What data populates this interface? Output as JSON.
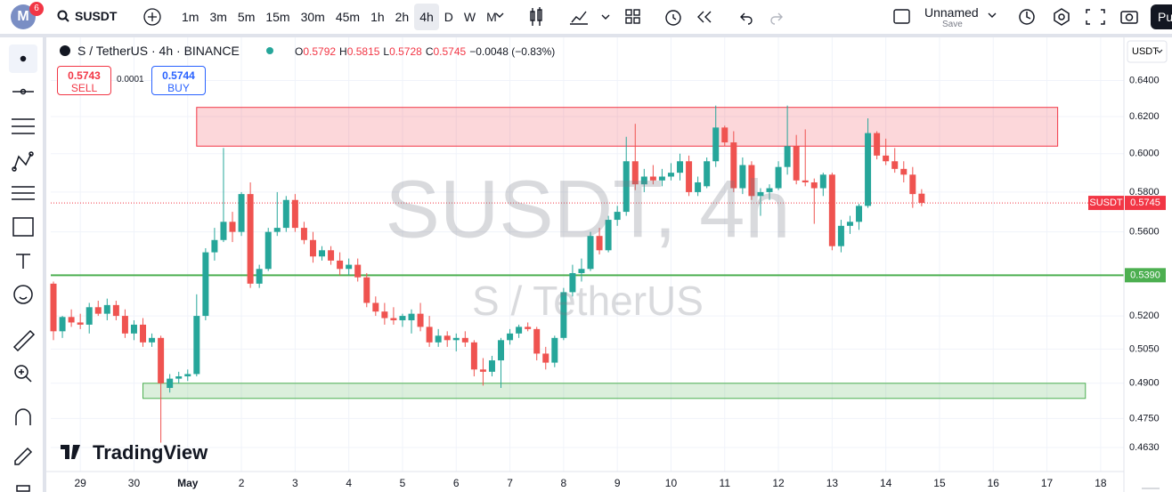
{
  "toolbar": {
    "badge": "6",
    "avatar": "M",
    "symbol": "SUSDT",
    "intervals": [
      "1m",
      "3m",
      "5m",
      "15m",
      "30m",
      "45m",
      "1h",
      "2h",
      "4h",
      "D",
      "W",
      "M"
    ],
    "active_interval": "4h",
    "layout_name": "Unnamed",
    "save": "Save",
    "publish": "Pu"
  },
  "legend": {
    "title": "S / TetherUS · 4h · BINANCE",
    "ohlc": [
      {
        "label": "O",
        "value": "0.5792"
      },
      {
        "label": "H",
        "value": "0.5815"
      },
      {
        "label": "L",
        "value": "0.5728"
      },
      {
        "label": "C",
        "value": "0.5745"
      }
    ],
    "change": "−0.0048 (−0.83%)"
  },
  "trade": {
    "sell_price": "0.5743",
    "sell": "SELL",
    "spread": "0.0001",
    "buy_price": "0.5744",
    "buy": "BUY"
  },
  "watermark": {
    "main": "SUSDT, 4h",
    "sub": "S / TetherUS",
    "logo": "TradingView"
  },
  "chart_data": {
    "type": "candlestick",
    "currency": "USDT",
    "log_scale": true,
    "grid": true,
    "up_color": "#26a69a",
    "down_color": "#ef5350",
    "open": [
      0.535,
      0.513,
      0.5195,
      0.517,
      0.516,
      0.524,
      0.521,
      0.525,
      0.52,
      0.512,
      0.516,
      0.508,
      0.51,
      0.488,
      0.492,
      0.493,
      0.494,
      0.52,
      0.55,
      0.556,
      0.565,
      0.56,
      0.579,
      0.535,
      0.542,
      0.56,
      0.562,
      0.576,
      0.562,
      0.556,
      0.548,
      0.551,
      0.546,
      0.542,
      0.544,
      0.538,
      0.526,
      0.522,
      0.519,
      0.518,
      0.518,
      0.521,
      0.515,
      0.508,
      0.511,
      0.509,
      0.51,
      0.508,
      0.496,
      0.495,
      0.5,
      0.509,
      0.512,
      0.515,
      0.514,
      0.503,
      0.499,
      0.51,
      0.531,
      0.54,
      0.542,
      0.558,
      0.551,
      0.566,
      0.57,
      0.596,
      0.584,
      0.588,
      0.586,
      0.588,
      0.59,
      0.596,
      0.58,
      0.583,
      0.596,
      0.614,
      0.606,
      0.582,
      0.594,
      0.578,
      0.58,
      0.582,
      0.593,
      0.604,
      0.586,
      0.585,
      0.582,
      0.589,
      0.553,
      0.563,
      0.565,
      0.573,
      0.611,
      0.599,
      0.596,
      0.592,
      0.589,
      0.5792
    ],
    "high": [
      0.536,
      0.52,
      0.523,
      0.521,
      0.526,
      0.527,
      0.528,
      0.527,
      0.523,
      0.518,
      0.519,
      0.512,
      0.511,
      0.494,
      0.495,
      0.496,
      0.53,
      0.552,
      0.562,
      0.603,
      0.57,
      0.58,
      0.585,
      0.544,
      0.562,
      0.58,
      0.578,
      0.579,
      0.565,
      0.56,
      0.553,
      0.553,
      0.55,
      0.547,
      0.547,
      0.54,
      0.529,
      0.526,
      0.524,
      0.521,
      0.523,
      0.526,
      0.52,
      0.514,
      0.513,
      0.512,
      0.513,
      0.509,
      0.501,
      0.502,
      0.51,
      0.514,
      0.516,
      0.517,
      0.515,
      0.506,
      0.511,
      0.533,
      0.544,
      0.547,
      0.56,
      0.562,
      0.568,
      0.573,
      0.609,
      0.616,
      0.592,
      0.594,
      0.592,
      0.595,
      0.6,
      0.599,
      0.588,
      0.598,
      0.626,
      0.615,
      0.612,
      0.598,
      0.596,
      0.582,
      0.584,
      0.596,
      0.626,
      0.61,
      0.613,
      0.587,
      0.59,
      0.59,
      0.566,
      0.568,
      0.574,
      0.619,
      0.612,
      0.608,
      0.603,
      0.596,
      0.593,
      0.5815
    ],
    "low": [
      0.509,
      0.51,
      0.515,
      0.514,
      0.512,
      0.52,
      0.518,
      0.518,
      0.51,
      0.509,
      0.506,
      0.506,
      0.465,
      0.486,
      0.49,
      0.491,
      0.493,
      0.518,
      0.546,
      0.555,
      0.555,
      0.558,
      0.533,
      0.533,
      0.541,
      0.558,
      0.56,
      0.56,
      0.554,
      0.545,
      0.546,
      0.544,
      0.539,
      0.539,
      0.536,
      0.524,
      0.52,
      0.516,
      0.516,
      0.515,
      0.512,
      0.513,
      0.506,
      0.506,
      0.506,
      0.504,
      0.506,
      0.493,
      0.489,
      0.493,
      0.488,
      0.507,
      0.51,
      0.513,
      0.5,
      0.496,
      0.497,
      0.509,
      0.529,
      0.536,
      0.541,
      0.549,
      0.55,
      0.563,
      0.568,
      0.581,
      0.58,
      0.584,
      0.583,
      0.586,
      0.586,
      0.578,
      0.578,
      0.582,
      0.593,
      0.604,
      0.58,
      0.579,
      0.576,
      0.568,
      0.576,
      0.581,
      0.589,
      0.584,
      0.583,
      0.564,
      0.578,
      0.551,
      0.55,
      0.559,
      0.561,
      0.572,
      0.597,
      0.594,
      0.59,
      0.585,
      0.572,
      0.5728
    ],
    "close": [
      0.513,
      0.5195,
      0.517,
      0.516,
      0.524,
      0.521,
      0.525,
      0.52,
      0.512,
      0.516,
      0.508,
      0.51,
      0.49,
      0.492,
      0.493,
      0.494,
      0.52,
      0.55,
      0.556,
      0.565,
      0.56,
      0.579,
      0.535,
      0.542,
      0.56,
      0.562,
      0.576,
      0.562,
      0.556,
      0.548,
      0.551,
      0.546,
      0.542,
      0.544,
      0.538,
      0.526,
      0.522,
      0.519,
      0.518,
      0.52,
      0.521,
      0.515,
      0.508,
      0.511,
      0.509,
      0.51,
      0.508,
      0.496,
      0.495,
      0.5,
      0.509,
      0.512,
      0.515,
      0.514,
      0.503,
      0.499,
      0.51,
      0.531,
      0.54,
      0.542,
      0.558,
      0.551,
      0.566,
      0.57,
      0.596,
      0.584,
      0.588,
      0.586,
      0.588,
      0.59,
      0.596,
      0.58,
      0.585,
      0.596,
      0.614,
      0.606,
      0.582,
      0.594,
      0.578,
      0.58,
      0.582,
      0.593,
      0.604,
      0.586,
      0.585,
      0.582,
      0.589,
      0.553,
      0.563,
      0.565,
      0.573,
      0.611,
      0.599,
      0.596,
      0.592,
      0.589,
      0.579,
      0.5745
    ],
    "xlim": [
      -0.3,
      119.6
    ],
    "xticks": [
      {
        "value": 3,
        "label": "29"
      },
      {
        "value": 9,
        "label": "30"
      },
      {
        "value": 15,
        "label": "May"
      },
      {
        "value": 21,
        "label": "2"
      },
      {
        "value": 27,
        "label": "3"
      },
      {
        "value": 33,
        "label": "4"
      },
      {
        "value": 39,
        "label": "5"
      },
      {
        "value": 45,
        "label": "6"
      },
      {
        "value": 51,
        "label": "7"
      },
      {
        "value": 57,
        "label": "8"
      },
      {
        "value": 63,
        "label": "9"
      },
      {
        "value": 69,
        "label": "10"
      },
      {
        "value": 75,
        "label": "11"
      },
      {
        "value": 81,
        "label": "12"
      },
      {
        "value": 87,
        "label": "13"
      },
      {
        "value": 93,
        "label": "14"
      },
      {
        "value": 99,
        "label": "15"
      },
      {
        "value": 105,
        "label": "16"
      },
      {
        "value": 111,
        "label": "17"
      },
      {
        "value": 117,
        "label": "18"
      }
    ],
    "ylim": [
      0.4533,
      0.6617
    ],
    "yticks": [
      {
        "value": 0.463,
        "label": "0.4630"
      },
      {
        "value": 0.475,
        "label": "0.4750"
      },
      {
        "value": 0.49,
        "label": "0.4900"
      },
      {
        "value": 0.505,
        "label": "0.5050"
      },
      {
        "value": 0.52,
        "label": "0.5200"
      },
      {
        "value": 0.56,
        "label": "0.5600"
      },
      {
        "value": 0.58,
        "label": "0.5800"
      },
      {
        "value": 0.6,
        "label": "0.6000"
      },
      {
        "value": 0.62,
        "label": "0.6200"
      },
      {
        "value": 0.64,
        "label": "0.6400"
      }
    ],
    "zones": [
      {
        "x": [
          16.0,
          112.2
        ],
        "y": [
          0.604,
          0.625
        ],
        "color": "#f23645"
      },
      {
        "x": [
          10.0,
          115.3
        ],
        "y": [
          0.4835,
          0.49
        ],
        "color": "#4caf50"
      }
    ],
    "level": {
      "value": 0.539,
      "label": "0.5390",
      "color": "#4caf50"
    },
    "last_price": {
      "symbol": "SUSDT",
      "value": 0.5745,
      "label": "0.5745",
      "color": "#f23645"
    }
  }
}
